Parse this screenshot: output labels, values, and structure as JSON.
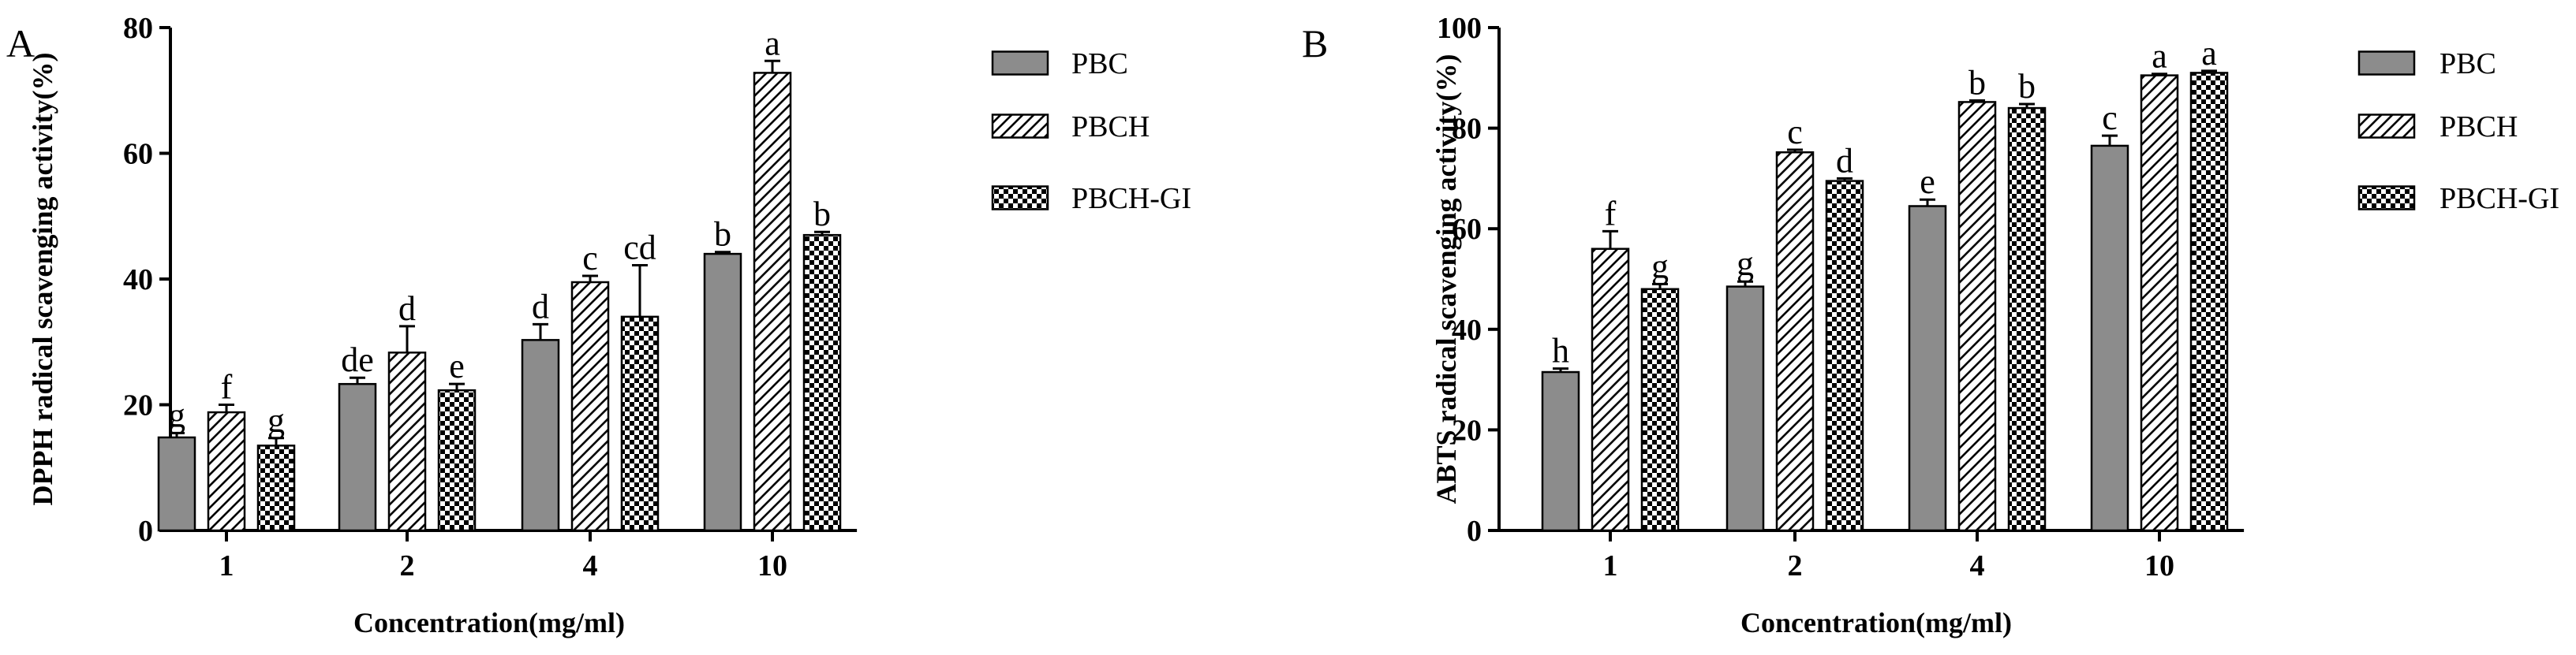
{
  "chart_data": [
    {
      "panel_label": "A",
      "type": "bar",
      "ylabel": "DPPH radical scavenging activity(%)",
      "xlabel": "Concentration(mg/ml)",
      "ylim": [
        0,
        80
      ],
      "yticks": [
        0,
        20,
        40,
        60,
        80
      ],
      "categories": [
        "1",
        "2",
        "4",
        "10"
      ],
      "grid": false,
      "legend_position": "right",
      "series": [
        {
          "name": "PBC",
          "pattern": "solid",
          "values": [
            14.8,
            23.3,
            30.3,
            44.0
          ],
          "errors": [
            0.7,
            1.0,
            2.5,
            0.3
          ],
          "labels": [
            "g",
            "de",
            "d",
            "b"
          ]
        },
        {
          "name": "PBCH",
          "pattern": "hatch",
          "values": [
            18.8,
            28.3,
            39.5,
            72.8
          ],
          "errors": [
            1.2,
            4.2,
            1.0,
            1.9
          ],
          "labels": [
            "f",
            "d",
            "c",
            "a"
          ]
        },
        {
          "name": "PBCH-GI",
          "pattern": "checker",
          "values": [
            13.5,
            22.3,
            34.0,
            47.0
          ],
          "errors": [
            1.2,
            1.0,
            8.2,
            0.5
          ],
          "labels": [
            "g",
            "e",
            "cd",
            "b"
          ]
        }
      ]
    },
    {
      "panel_label": "B",
      "type": "bar",
      "ylabel": "ABTS radical scavenging activity(%)",
      "xlabel": "Concentration(mg/ml)",
      "ylim": [
        0,
        100
      ],
      "yticks": [
        0,
        20,
        40,
        60,
        80,
        100
      ],
      "categories": [
        "1",
        "2",
        "4",
        "10"
      ],
      "grid": false,
      "legend_position": "right",
      "series": [
        {
          "name": "PBC",
          "pattern": "solid",
          "values": [
            31.5,
            48.5,
            64.5,
            76.5
          ],
          "errors": [
            0.7,
            1.0,
            1.3,
            2.0
          ],
          "labels": [
            "h",
            "g",
            "e",
            "c"
          ]
        },
        {
          "name": "PBCH",
          "pattern": "hatch",
          "values": [
            56.0,
            75.2,
            85.2,
            90.5
          ],
          "errors": [
            3.5,
            0.5,
            0.3,
            0.3
          ],
          "labels": [
            "f",
            "c",
            "b",
            "a"
          ]
        },
        {
          "name": "PBCH-GI",
          "pattern": "checker",
          "values": [
            48.0,
            69.5,
            84.0,
            91.0
          ],
          "errors": [
            1.0,
            0.5,
            0.8,
            0.4
          ],
          "labels": [
            "g",
            "d",
            "b",
            "a"
          ]
        }
      ]
    }
  ],
  "colors": {
    "solid_fill": "#8c8c8c",
    "ink": "#000000",
    "background": "#ffffff"
  }
}
